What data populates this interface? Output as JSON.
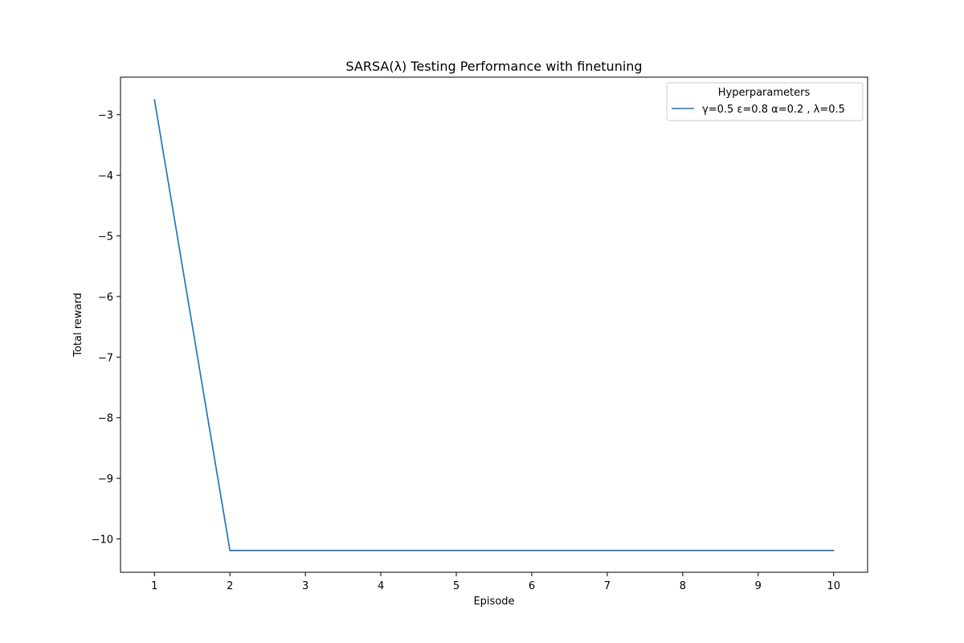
{
  "chart_data": {
    "type": "line",
    "title": "SARSA(λ) Testing Performance with finetuning",
    "xlabel": "Episode",
    "ylabel": "Total reward",
    "x": [
      1,
      2,
      3,
      4,
      5,
      6,
      7,
      8,
      9,
      10
    ],
    "xticks": [
      1,
      2,
      3,
      4,
      5,
      6,
      7,
      8,
      9,
      10
    ],
    "yticks": [
      -3,
      -4,
      -5,
      -6,
      -7,
      -8,
      -9,
      -10
    ],
    "xlim": [
      0.55,
      10.45
    ],
    "ylim": [
      -10.55,
      -2.38
    ],
    "grid": false,
    "legend": {
      "title": "Hyperparameters",
      "placement": "top-right"
    },
    "series": [
      {
        "name": "γ=0.5 ε=0.8 α=0.2 , λ=0.5",
        "color": "#1f77b4",
        "values": [
          -2.75,
          -10.19,
          -10.19,
          -10.19,
          -10.19,
          -10.19,
          -10.19,
          -10.19,
          -10.19,
          -10.19
        ]
      }
    ]
  }
}
